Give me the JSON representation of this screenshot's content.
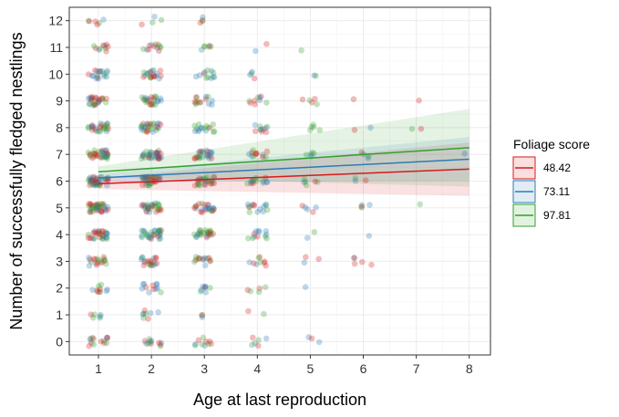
{
  "chart_data": {
    "type": "scatter",
    "title": "",
    "xlabel": "Age at last reproduction",
    "ylabel": "Number of successfully fledged nestlings",
    "xlim": [
      0.45,
      8.4
    ],
    "ylim": [
      -0.5,
      12.5
    ],
    "x_ticks": [
      1,
      2,
      3,
      4,
      5,
      6,
      7,
      8
    ],
    "y_ticks": [
      0,
      1,
      2,
      3,
      4,
      5,
      6,
      7,
      8,
      9,
      10,
      11,
      12
    ],
    "grid": true,
    "legend": {
      "title": "Foliage score",
      "placement": "right",
      "entries": [
        {
          "label": "48.42",
          "color": "#d7191c"
        },
        {
          "label": "73.11",
          "color": "#2c7bb6"
        },
        {
          "label": "97.81",
          "color": "#33a02c"
        }
      ]
    },
    "series": [
      {
        "name": "48.42",
        "color": "#d7191c",
        "fit_x": [
          1,
          8
        ],
        "fit_y": [
          5.9,
          6.45
        ],
        "ci_lower": [
          5.7,
          5.45
        ],
        "ci_upper": [
          6.1,
          7.45
        ]
      },
      {
        "name": "73.11",
        "color": "#2c7bb6",
        "fit_x": [
          1,
          8
        ],
        "fit_y": [
          6.12,
          6.82
        ],
        "ci_lower": [
          5.97,
          6.0
        ],
        "ci_upper": [
          6.27,
          7.65
        ]
      },
      {
        "name": "97.81",
        "color": "#33a02c",
        "fit_x": [
          1,
          8
        ],
        "fit_y": [
          6.35,
          7.25
        ],
        "ci_lower": [
          6.15,
          5.8
        ],
        "ci_upper": [
          6.55,
          8.7
        ]
      }
    ],
    "point_groups": [
      {
        "x": 1,
        "counts": [
          14,
          6,
          10,
          18,
          30,
          40,
          42,
          34,
          26,
          26,
          18,
          10,
          6
        ]
      },
      {
        "x": 2,
        "counts": [
          12,
          8,
          12,
          20,
          30,
          30,
          34,
          34,
          28,
          24,
          20,
          12,
          4
        ]
      },
      {
        "x": 3,
        "counts": [
          10,
          3,
          8,
          14,
          24,
          24,
          26,
          24,
          16,
          14,
          12,
          6,
          4
        ]
      },
      {
        "x": 4,
        "counts": [
          6,
          2,
          5,
          9,
          12,
          14,
          14,
          12,
          10,
          9,
          4,
          2,
          0
        ]
      },
      {
        "x": 5,
        "counts": [
          3,
          0,
          1,
          3,
          2,
          5,
          6,
          5,
          5,
          5,
          2,
          1,
          0
        ]
      },
      {
        "x": 6,
        "counts": [
          0,
          0,
          0,
          5,
          1,
          4,
          3,
          4,
          2,
          1,
          0,
          0,
          0
        ]
      },
      {
        "x": 7,
        "counts": [
          0,
          0,
          0,
          0,
          0,
          1,
          0,
          0,
          2,
          1,
          0,
          0,
          0
        ]
      },
      {
        "x": 8,
        "counts": [
          0,
          0,
          0,
          0,
          0,
          0,
          0,
          1,
          0,
          0,
          0,
          0,
          0
        ]
      }
    ]
  }
}
